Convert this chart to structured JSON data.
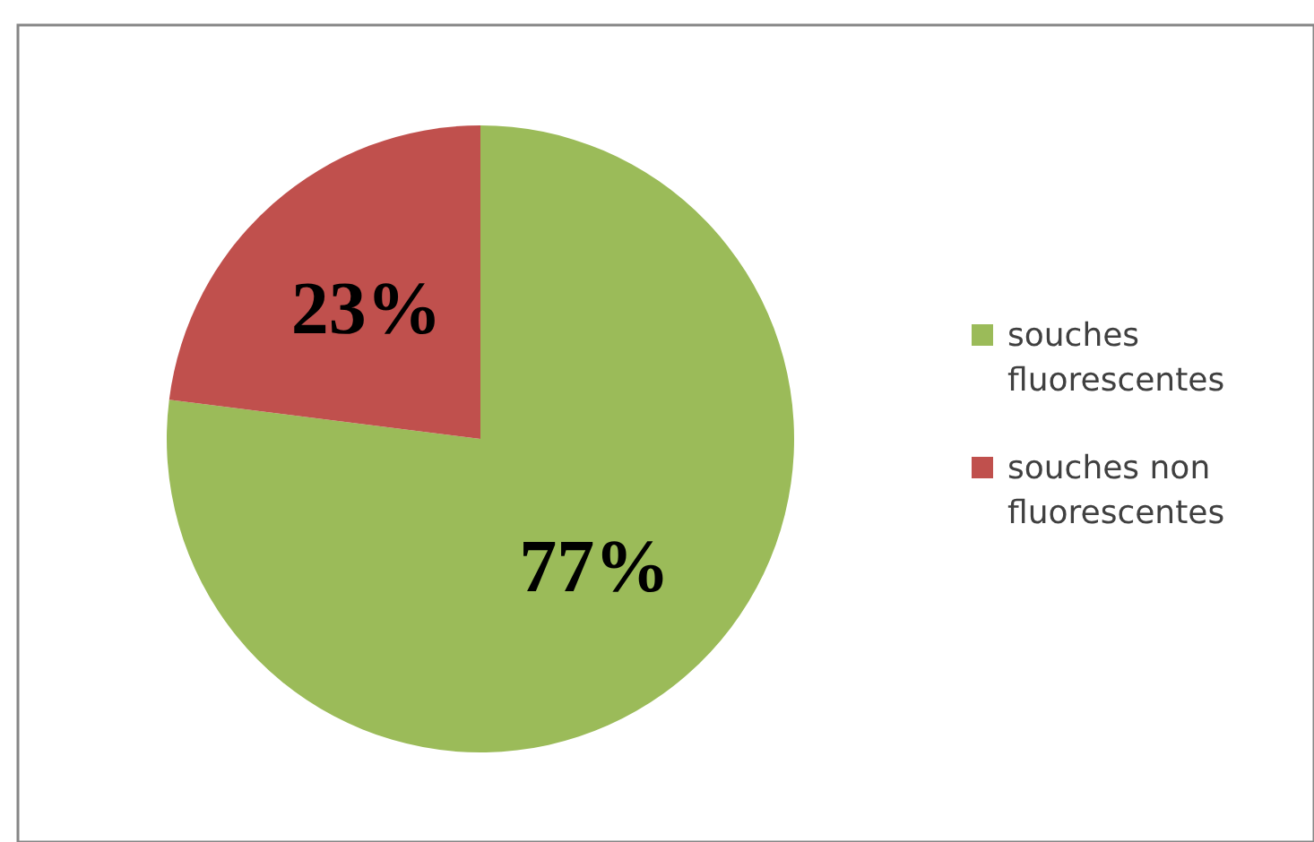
{
  "chart_data": {
    "type": "pie",
    "categories": [
      "souches fluorescentes",
      "souches non fluorescentes"
    ],
    "values": [
      77,
      23
    ],
    "colors": [
      "#9bbb59",
      "#c0504d"
    ],
    "value_labels": [
      "77%",
      "23%"
    ],
    "legend": "right"
  }
}
